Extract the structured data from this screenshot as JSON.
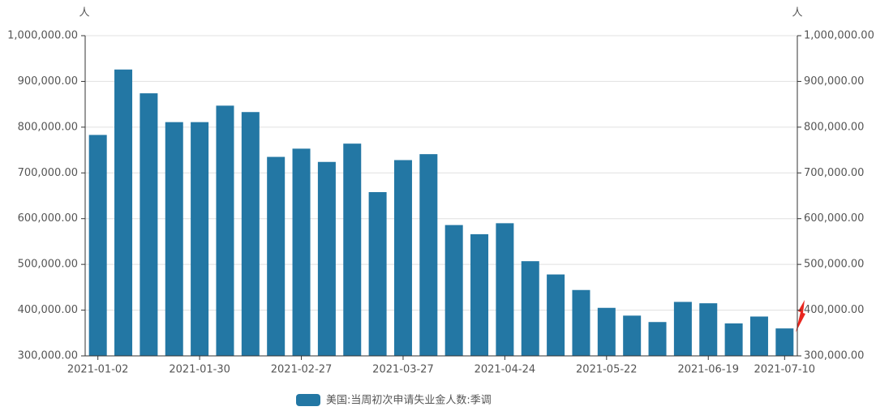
{
  "chart_data": {
    "type": "bar",
    "y_axis_label": "人",
    "y2_axis_label": "人",
    "categories": [
      "2021-01-02",
      null,
      null,
      null,
      "2021-01-30",
      null,
      null,
      null,
      "2021-02-27",
      null,
      null,
      null,
      "2021-03-27",
      null,
      null,
      null,
      "2021-04-24",
      null,
      null,
      null,
      "2021-05-22",
      null,
      null,
      null,
      "2021-06-19",
      null,
      null,
      "2021-07-10"
    ],
    "series": [
      {
        "name": "美国:当周初次申请失业金人数:季调",
        "color": "#2377a4",
        "values": [
          783000,
          926000,
          874000,
          811000,
          811000,
          847000,
          833000,
          735000,
          753000,
          724000,
          764000,
          658000,
          728000,
          741000,
          586000,
          566000,
          590000,
          507000,
          478000,
          444000,
          405000,
          388000,
          374000,
          418000,
          415000,
          371000,
          386000,
          360000
        ]
      }
    ],
    "ylim": [
      300000,
      1000000
    ],
    "yticks": [
      {
        "value": 300000,
        "label": "300,000.00"
      },
      {
        "value": 400000,
        "label": "400,000.00"
      },
      {
        "value": 500000,
        "label": "500,000.00"
      },
      {
        "value": 600000,
        "label": "600,000.00"
      },
      {
        "value": 700000,
        "label": "700,000.00"
      },
      {
        "value": 800000,
        "label": "800,000.00"
      },
      {
        "value": 900000,
        "label": "900,000.00"
      },
      {
        "value": 1000000,
        "label": "1,000,000.00"
      }
    ],
    "y2lim": [
      300000,
      1000000
    ],
    "y2ticks": [
      {
        "value": 300000,
        "label": "300,000.00"
      },
      {
        "value": 400000,
        "label": "400,000.00"
      },
      {
        "value": 500000,
        "label": "500,000.00"
      },
      {
        "value": 600000,
        "label": "600,000.00"
      },
      {
        "value": 700000,
        "label": "700,000.00"
      },
      {
        "value": 800000,
        "label": "800,000.00"
      },
      {
        "value": 900000,
        "label": "900,000.00"
      },
      {
        "value": 1000000,
        "label": "1,000,000.00"
      }
    ],
    "grid": true
  }
}
